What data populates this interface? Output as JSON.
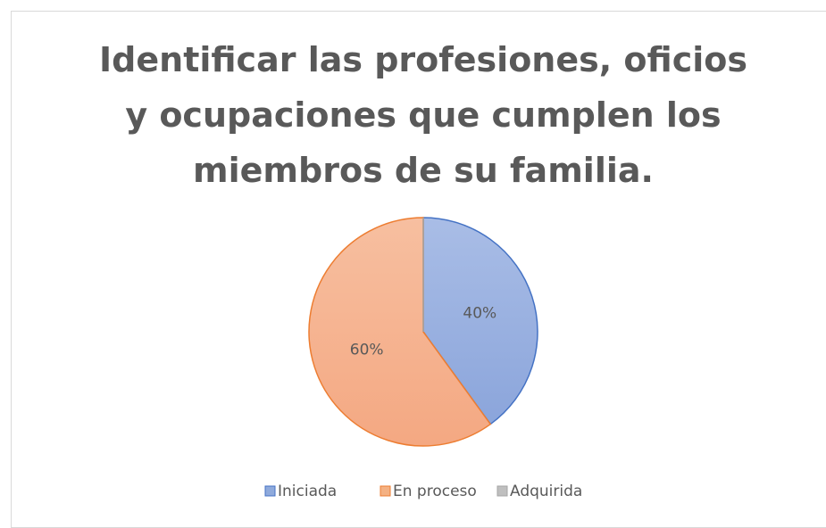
{
  "chart_data": {
    "type": "pie",
    "title": "Identificar las profesiones, oficios y ocupaciones que cumplen los miembros de su familia.",
    "categories": [
      "Iniciada",
      "En proceso",
      "Adquirida"
    ],
    "values": [
      40,
      60,
      0
    ],
    "value_labels": [
      "40%",
      "60%",
      null
    ],
    "colors": [
      "#8faadc",
      "#f4b183",
      "#bfbfbf"
    ],
    "edge_colors": [
      "#4472c4",
      "#ed7d31",
      "#a5a5a5"
    ],
    "legend": "bottom"
  }
}
